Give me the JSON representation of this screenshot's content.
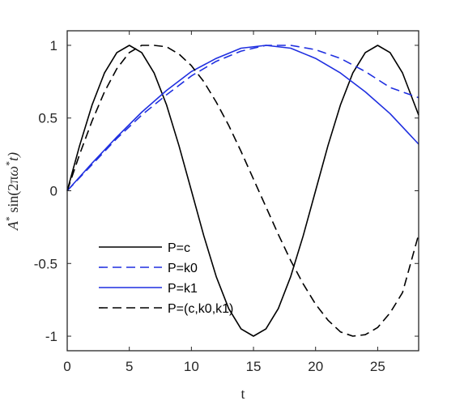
{
  "chart_data": {
    "type": "line",
    "title": "",
    "xlabel": "t",
    "ylabel_parts": {
      "A": "A",
      "star1": "*",
      "sin": " sin(2π",
      "omega": "ω",
      "star2": "*",
      "t": "t)"
    },
    "xlim": [
      0,
      28.3
    ],
    "ylim": [
      -1.1,
      1.1
    ],
    "x_ticks": [
      0,
      5,
      10,
      15,
      20,
      25
    ],
    "x_tick_labels": [
      "0",
      "5",
      "10",
      "15",
      "20",
      "25"
    ],
    "y_ticks": [
      -1,
      -0.5,
      0,
      0.5,
      1
    ],
    "y_tick_labels": [
      "-1",
      "-0.5",
      "0",
      "0.5",
      "1"
    ],
    "grid": false,
    "legend_position": "bottom-left",
    "series": [
      {
        "name": "P=c",
        "color": "#000000",
        "dash": "solid",
        "x": [
          0,
          1,
          2,
          3,
          4,
          5,
          6,
          7,
          8,
          9,
          10,
          11,
          12,
          13,
          14,
          15,
          16,
          17,
          18,
          19,
          20,
          21,
          22,
          23,
          24,
          25,
          26,
          27,
          28.3
        ],
        "y": [
          0,
          0.31,
          0.59,
          0.81,
          0.95,
          1.0,
          0.95,
          0.81,
          0.59,
          0.31,
          0,
          -0.31,
          -0.59,
          -0.81,
          -0.95,
          -1.0,
          -0.95,
          -0.81,
          -0.59,
          -0.31,
          0,
          0.31,
          0.59,
          0.81,
          0.95,
          1.0,
          0.95,
          0.81,
          0.52
        ]
      },
      {
        "name": "P=k0",
        "color": "#1f2fe0",
        "dash": "dashed",
        "x": [
          0,
          2,
          4,
          6,
          8,
          10,
          12,
          14,
          16,
          18,
          20,
          22,
          24,
          26,
          28.3
        ],
        "y": [
          0,
          0.18,
          0.36,
          0.52,
          0.66,
          0.79,
          0.89,
          0.96,
          1.0,
          1.0,
          0.97,
          0.91,
          0.82,
          0.71,
          0.64
        ]
      },
      {
        "name": "P=k1",
        "color": "#1f2fe0",
        "dash": "solid",
        "x": [
          0,
          2,
          4,
          6,
          8,
          10,
          12,
          14,
          16,
          18,
          20,
          22,
          24,
          26,
          28.3
        ],
        "y": [
          0,
          0.19,
          0.37,
          0.54,
          0.69,
          0.82,
          0.91,
          0.98,
          1.0,
          0.98,
          0.91,
          0.81,
          0.68,
          0.53,
          0.32
        ]
      },
      {
        "name": "P=(c,k0,k1)",
        "color": "#000000",
        "dash": "dashed",
        "x": [
          0,
          1,
          2,
          3,
          4,
          5,
          6,
          7,
          8,
          9,
          10,
          11,
          12,
          13,
          14,
          15,
          16,
          17,
          18,
          19,
          20,
          21,
          22,
          23,
          24,
          25,
          26,
          27,
          28.3
        ],
        "y": [
          0,
          0.25,
          0.48,
          0.68,
          0.84,
          0.95,
          1.0,
          1.0,
          0.99,
          0.94,
          0.86,
          0.75,
          0.61,
          0.45,
          0.27,
          0.08,
          -0.11,
          -0.3,
          -0.48,
          -0.64,
          -0.78,
          -0.89,
          -0.97,
          -1.0,
          -0.99,
          -0.94,
          -0.84,
          -0.7,
          -0.3
        ]
      }
    ]
  }
}
